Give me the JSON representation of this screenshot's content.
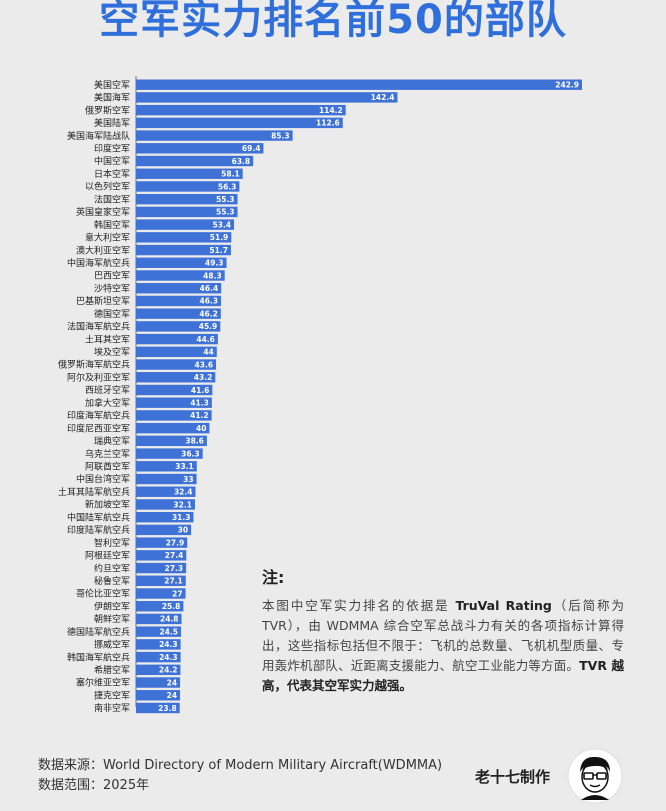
{
  "title": "空军实力排名前50的部队",
  "chart_data": {
    "type": "bar",
    "orientation": "horizontal",
    "color": "#3f72d6",
    "categories": [
      "美国空军",
      "美国海军",
      "俄罗斯空军",
      "美国陆军",
      "美国海军陆战队",
      "印度空军",
      "中国空军",
      "日本空军",
      "以色列空军",
      "法国空军",
      "英国皇家空军",
      "韩国空军",
      "意大利空军",
      "澳大利亚空军",
      "中国海军航空兵",
      "巴西空军",
      "沙特空军",
      "巴基斯坦空军",
      "德国空军",
      "法国海军航空兵",
      "土耳其空军",
      "埃及空军",
      "俄罗斯海军航空兵",
      "阿尔及利亚空军",
      "西班牙空军",
      "加拿大空军",
      "印度海军航空兵",
      "印度尼西亚空军",
      "瑞典空军",
      "乌克兰空军",
      "阿联酋空军",
      "中国台湾空军",
      "土耳其陆军航空兵",
      "新加坡空军",
      "中国陆军航空兵",
      "印度陆军航空兵",
      "智利空军",
      "阿根廷空军",
      "约旦空军",
      "秘鲁空军",
      "哥伦比亚空军",
      "伊朗空军",
      "朝鲜空军",
      "德国陆军航空兵",
      "挪威空军",
      "韩国海军航空兵",
      "希腊空军",
      "塞尔维亚空军",
      "捷克空军",
      "南非空军"
    ],
    "values": [
      242.9,
      142.4,
      114.2,
      112.6,
      85.3,
      69.4,
      63.8,
      58.1,
      56.3,
      55.3,
      55.3,
      53.4,
      51.9,
      51.7,
      49.3,
      48.3,
      46.4,
      46.3,
      46.2,
      45.9,
      44.6,
      44,
      43.6,
      43.2,
      41.6,
      41.3,
      41.2,
      40,
      38.6,
      36.3,
      33.1,
      33,
      32.4,
      32.1,
      31.3,
      30,
      27.9,
      27.4,
      27.3,
      27.1,
      27,
      25.8,
      24.8,
      24.5,
      24.3,
      24.3,
      24.2,
      24,
      24,
      23.8
    ],
    "value_labels": [
      "242.9",
      "142.4",
      "114.2",
      "112.6",
      "85.3",
      "69.4",
      "63.8",
      "58.1",
      "56.3",
      "55.3",
      "55.3",
      "53.4",
      "51.9",
      "51.7",
      "49.3",
      "48.3",
      "46.4",
      "46.3",
      "46.2",
      "45.9",
      "44.6",
      "44",
      "43.6",
      "43.2",
      "41.6",
      "41.3",
      "41.2",
      "40",
      "38.6",
      "36.3",
      "33.1",
      "33",
      "32.4",
      "32.1",
      "31.3",
      "30",
      "27.9",
      "27.4",
      "27.3",
      "27.1",
      "27",
      "25.8",
      "24.8",
      "24.5",
      "24.3",
      "24.3",
      "24.2",
      "24",
      "24",
      "23.8"
    ],
    "xlim": [
      0,
      250
    ]
  },
  "note": {
    "title": "注:",
    "p1": "本图中空军实力排名的依据是 ",
    "p1_bold": "TruVal Rating",
    "p2": "（后简称为TVR），由 WDMMA 综合空军总战斗力有关的各项指标计算得出，这些指标包括但不限于：飞机的总数量、飞机机型质量、专用轰炸机部队、近距离支援能力、航空工业能力等方面。",
    "p3_bold": "TVR 越高，代表其空军实力越强。"
  },
  "footer": {
    "source": "数据来源：World Directory of Modern Military Aircraft(WDMMA)",
    "range": "数据范围：2025年"
  },
  "brand": "老十七制作"
}
